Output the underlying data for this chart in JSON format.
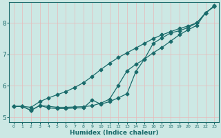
{
  "xlabel": "Humidex (Indice chaleur)",
  "bg_color": "#cce8e4",
  "line_color": "#1a6b6b",
  "grid_color_v": "#e8b8b8",
  "grid_color_h": "#e8b8b8",
  "xlim": [
    -0.5,
    23.5
  ],
  "ylim": [
    4.85,
    8.65
  ],
  "xticks": [
    0,
    1,
    2,
    3,
    4,
    5,
    6,
    7,
    8,
    9,
    10,
    11,
    12,
    13,
    14,
    15,
    16,
    17,
    18,
    19,
    20,
    21,
    22,
    23
  ],
  "yticks": [
    5,
    6,
    7,
    8
  ],
  "line1_x": [
    0,
    1,
    2,
    3,
    4,
    5,
    6,
    7,
    8,
    9,
    10,
    11,
    12,
    13,
    14,
    15,
    16,
    17,
    18,
    19,
    20,
    21,
    22,
    23
  ],
  "line1_y": [
    5.35,
    5.35,
    5.32,
    5.5,
    5.62,
    5.72,
    5.82,
    5.95,
    6.1,
    6.3,
    6.52,
    6.72,
    6.9,
    7.05,
    7.2,
    7.35,
    7.5,
    7.62,
    7.72,
    7.82,
    7.9,
    8.0,
    8.3,
    8.55
  ],
  "line2_x": [
    0,
    1,
    2,
    3,
    4,
    5,
    6,
    7,
    8,
    9,
    10,
    11,
    12,
    13,
    14,
    15,
    16,
    17,
    18,
    19,
    20,
    21,
    22,
    23
  ],
  "line2_y": [
    5.35,
    5.35,
    5.22,
    5.38,
    5.35,
    5.32,
    5.32,
    5.33,
    5.34,
    5.37,
    5.45,
    5.58,
    6.02,
    6.48,
    6.68,
    6.85,
    7.05,
    7.22,
    7.42,
    7.62,
    7.78,
    7.92,
    8.32,
    8.52
  ],
  "line3_x": [
    0,
    1,
    2,
    3,
    4,
    5,
    6,
    7,
    8,
    9,
    10,
    11,
    12,
    13,
    14,
    15,
    16,
    17,
    18,
    19,
    20,
    21,
    22,
    23
  ],
  "line3_y": [
    5.35,
    5.35,
    5.22,
    5.38,
    5.3,
    5.28,
    5.28,
    5.3,
    5.3,
    5.55,
    5.42,
    5.5,
    5.62,
    5.75,
    6.45,
    6.85,
    7.35,
    7.52,
    7.68,
    7.75,
    7.85,
    8.0,
    8.32,
    8.52
  ]
}
